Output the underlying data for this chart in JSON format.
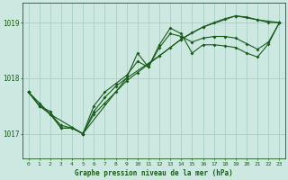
{
  "title": "Graphe pression niveau de la mer (hPa)",
  "background_color": "#cce8e0",
  "grid_color": "#aad0c8",
  "line_color": "#1a5c1a",
  "xlim": [
    -0.5,
    23.5
  ],
  "ylim": [
    1016.55,
    1019.35
  ],
  "yticks": [
    1017,
    1018,
    1019
  ],
  "xticks": [
    0,
    1,
    2,
    3,
    4,
    5,
    6,
    7,
    8,
    9,
    10,
    11,
    12,
    13,
    14,
    15,
    16,
    17,
    18,
    19,
    20,
    21,
    22,
    23
  ],
  "series1_x": [
    0,
    1,
    2,
    3,
    4,
    5,
    6,
    7,
    8,
    9,
    10,
    11,
    12,
    13,
    14,
    15,
    16,
    17,
    18,
    19,
    20,
    21,
    22,
    23
  ],
  "series1_y": [
    1017.75,
    1017.55,
    1017.35,
    1017.15,
    1017.1,
    1017.0,
    1017.35,
    1017.55,
    1017.75,
    1017.95,
    1018.1,
    1018.25,
    1018.4,
    1018.55,
    1018.7,
    1018.82,
    1018.92,
    1019.0,
    1019.07,
    1019.12,
    1019.1,
    1019.05,
    1019.0,
    1019.0
  ],
  "series2_x": [
    0,
    1,
    2,
    3,
    4,
    5,
    6,
    7,
    8,
    9,
    10,
    11,
    12,
    13,
    14,
    15,
    16,
    17,
    18,
    19,
    20,
    21,
    22,
    23
  ],
  "series2_y": [
    1017.75,
    1017.5,
    1017.35,
    1017.1,
    1017.1,
    1017.0,
    1017.5,
    1017.75,
    1017.9,
    1018.05,
    1018.3,
    1018.2,
    1018.55,
    1018.8,
    1018.75,
    1018.65,
    1018.72,
    1018.75,
    1018.75,
    1018.72,
    1018.62,
    1018.52,
    1018.65,
    1019.0
  ],
  "series3_x": [
    0,
    1,
    2,
    3,
    4,
    5,
    6,
    7,
    8,
    9,
    10,
    11,
    12,
    13,
    14,
    15,
    16,
    17,
    18,
    19,
    20,
    21,
    22,
    23
  ],
  "series3_y": [
    1017.75,
    1017.5,
    1017.4,
    1017.1,
    1017.1,
    1017.0,
    1017.4,
    1017.65,
    1017.85,
    1018.0,
    1018.45,
    1018.2,
    1018.6,
    1018.9,
    1018.8,
    1018.45,
    1018.6,
    1018.6,
    1018.58,
    1018.55,
    1018.45,
    1018.38,
    1018.62,
    1019.0
  ],
  "series4_x": [
    0,
    2,
    5,
    9,
    12,
    14,
    16,
    19,
    21,
    23
  ],
  "series4_y": [
    1017.75,
    1017.35,
    1017.0,
    1018.0,
    1018.4,
    1018.7,
    1018.92,
    1019.12,
    1019.05,
    1019.0
  ]
}
